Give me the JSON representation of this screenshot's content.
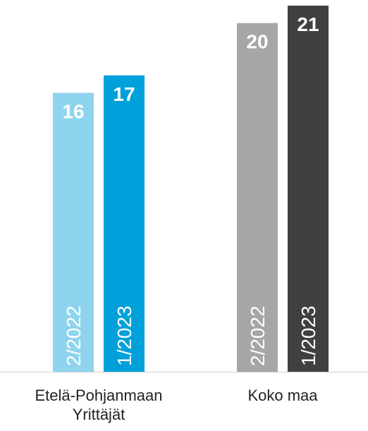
{
  "chart_data": {
    "type": "bar",
    "categories": [
      "Etelä-Pohjanmaan Yrittäjät",
      "Koko maa"
    ],
    "series": [
      {
        "name": "2/2022",
        "colors": [
          "#8fd4ed",
          "#a6a6a6"
        ],
        "values": [
          16,
          20
        ]
      },
      {
        "name": "1/2023",
        "colors": [
          "#00a1db",
          "#404040"
        ],
        "values": [
          17,
          21
        ]
      }
    ],
    "ylim": [
      0,
      21
    ]
  }
}
